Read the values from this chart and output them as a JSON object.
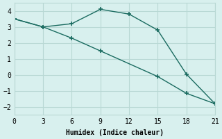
{
  "line1_x": [
    0,
    3,
    6,
    9,
    12,
    15,
    18,
    21
  ],
  "line1_y": [
    3.5,
    3.0,
    3.2,
    4.1,
    3.8,
    2.8,
    0.05,
    -1.8
  ],
  "line2_x": [
    0,
    3,
    6,
    9,
    15,
    18,
    21
  ],
  "line2_y": [
    3.5,
    3.0,
    2.3,
    1.5,
    -0.1,
    -1.15,
    -1.8
  ],
  "line_color": "#1a6b60",
  "bg_color": "#d8f0ee",
  "grid_color": "#b8d8d4",
  "xlabel": "Humidex (Indice chaleur)",
  "xlim": [
    0,
    21
  ],
  "ylim": [
    -2.5,
    4.5
  ],
  "xticks": [
    0,
    3,
    6,
    9,
    12,
    15,
    18,
    21
  ],
  "yticks": [
    -2,
    -1,
    0,
    1,
    2,
    3,
    4
  ],
  "font_family": "monospace",
  "linewidth": 1.0,
  "markersize": 4
}
